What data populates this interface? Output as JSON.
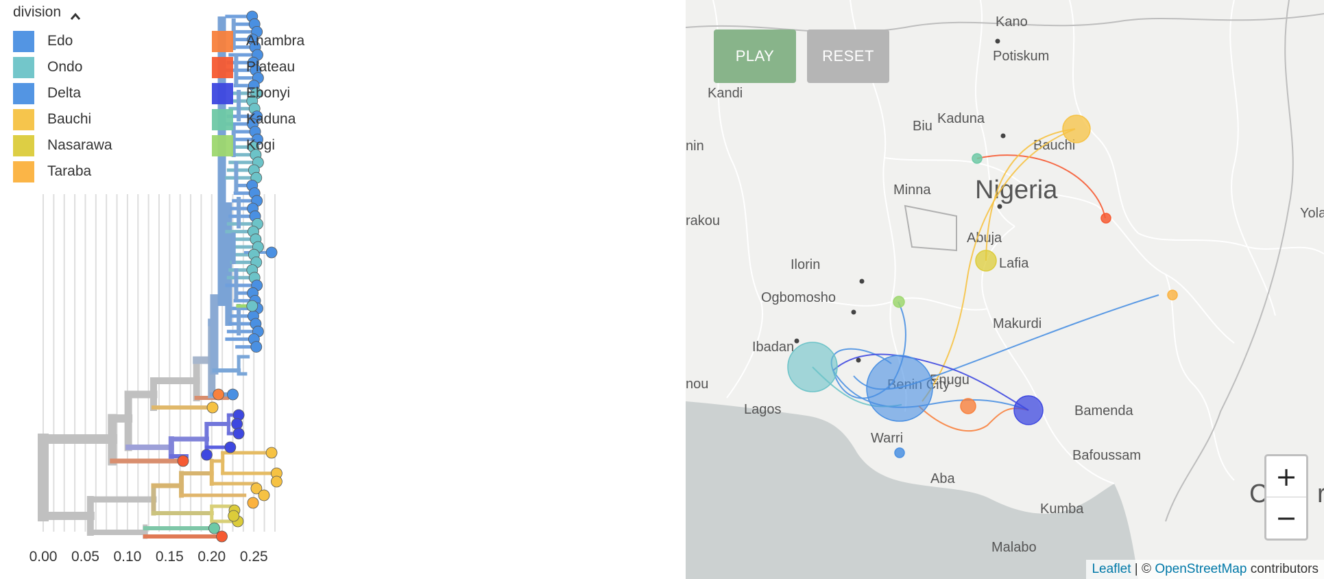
{
  "tree": {
    "legend_title": "division",
    "legend": [
      {
        "label": "Edo",
        "color": "#4a90e2"
      },
      {
        "label": "Ondo",
        "color": "#6cc3c8"
      },
      {
        "label": "Delta",
        "color": "#4a90e2"
      },
      {
        "label": "Bauchi",
        "color": "#f6c243"
      },
      {
        "label": "Nasarawa",
        "color": "#dccc3a"
      },
      {
        "label": "Taraba",
        "color": "#fbb23e"
      },
      {
        "label": "Anambra",
        "color": "#f8813d"
      },
      {
        "label": "Plateau",
        "color": "#f65a32"
      },
      {
        "label": "Ebonyi",
        "color": "#3e48e0"
      },
      {
        "label": "Kaduna",
        "color": "#6ec9a6"
      },
      {
        "label": "Kogi",
        "color": "#9ed76f"
      }
    ],
    "axis_ticks": [
      "0.00",
      "0.05",
      "0.10",
      "0.15",
      "0.20",
      "0.25"
    ]
  },
  "map": {
    "play_label": "PLAY",
    "reset_label": "RESET",
    "zoom_in": "+",
    "zoom_out": "−",
    "attribution_leaflet": "Leaflet",
    "attribution_sep": " | © ",
    "attribution_osm": "OpenStreetMap",
    "attribution_tail": " contributors",
    "places": [
      "Kano",
      "Potiskum",
      "Kandi",
      "Kaduna",
      "Biu",
      "nin",
      "Bauchi",
      "Minna",
      "Nigeria",
      "Abuja",
      "Yola",
      "rakou",
      "Lafia",
      "Ilorin",
      "Ogbomosho",
      "Makurdi",
      "Ibadan",
      "nou",
      "Benin City",
      "Enugu",
      "Lagos",
      "Bamenda",
      "Warri",
      "Bafoussam",
      "Aba",
      "Ca",
      "ro",
      "Kumba",
      "Malabo"
    ]
  }
}
